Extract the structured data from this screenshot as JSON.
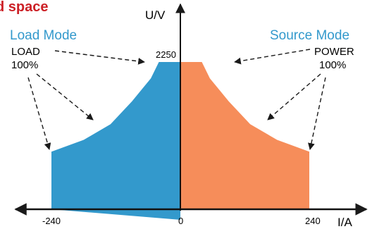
{
  "chart_data": {
    "type": "area",
    "title": "d space",
    "xlabel": "I/A",
    "ylabel": "U/V",
    "x_ticks": [
      "-240",
      "0",
      "240"
    ],
    "y_ticks": [
      "2250"
    ],
    "xlim": [
      -240,
      240
    ],
    "ylim": [
      0,
      2250
    ],
    "colors": {
      "load": "#3399cc",
      "source": "#f68d5a",
      "title": "#cc2026",
      "mode_label": "#3399cc",
      "axis": "#111111",
      "annotation": "#1a1a1a"
    },
    "series": [
      {
        "name": "Load Mode",
        "points": [
          [
            -240,
            0
          ],
          [
            -240,
            880
          ],
          [
            -180,
            1060
          ],
          [
            -130,
            1300
          ],
          [
            -90,
            1650
          ],
          [
            -55,
            2000
          ],
          [
            -40,
            2250
          ],
          [
            0,
            2250
          ],
          [
            0,
            -160
          ]
        ]
      },
      {
        "name": "Source Mode",
        "points": [
          [
            0,
            0
          ],
          [
            0,
            2250
          ],
          [
            40,
            2250
          ],
          [
            55,
            2000
          ],
          [
            90,
            1650
          ],
          [
            130,
            1300
          ],
          [
            180,
            1060
          ],
          [
            240,
            880
          ],
          [
            240,
            0
          ]
        ]
      }
    ],
    "annotations": {
      "load_mode": "Load Mode",
      "load_line1": "LOAD",
      "load_line2": "100%",
      "source_mode": "Source Mode",
      "source_line1": "POWER",
      "source_line2": "100%"
    }
  }
}
